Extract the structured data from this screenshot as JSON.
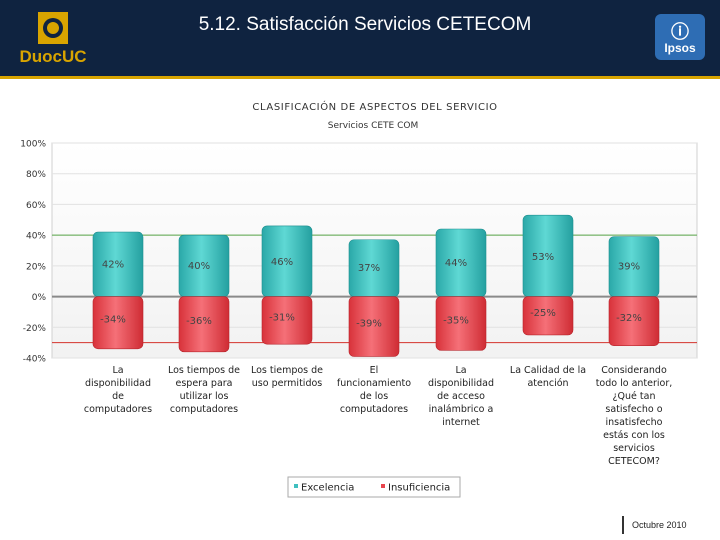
{
  "header": {
    "title": "5.12. Satisfacción Servicios CETECOM",
    "logo_left_text": "DuocUC",
    "logo_right_text": "Ipsos"
  },
  "footer": {
    "date": "Octubre 2010"
  },
  "colors": {
    "excelencia": "#3fbfbf",
    "insuficiencia": "#e8454d",
    "header_bg": "#0f2340"
  },
  "chart_data": {
    "type": "bar",
    "title": "CLASIFICACIÓN DE ASPECTOS DEL SERVICIO",
    "subtitle": "Servicios CETE COM",
    "ylim": [
      -40,
      100
    ],
    "y_ticks": [
      "100%",
      "80%",
      "60%",
      "40%",
      "20%",
      "0%",
      "-20%",
      "-40%"
    ],
    "y_tick_values": [
      100,
      80,
      60,
      40,
      20,
      0,
      -20,
      -40
    ],
    "reference_lines": [
      40,
      -30
    ],
    "categories": [
      [
        "La",
        "disponibilidad",
        "de",
        "computadores"
      ],
      [
        "Los tiempos de",
        "espera para",
        "utilizar los",
        "computadores"
      ],
      [
        "Los tiempos de",
        "uso permitidos"
      ],
      [
        "El",
        "funcionamiento",
        "de los",
        "computadores"
      ],
      [
        "La",
        "disponibilidad",
        "de acceso",
        "inalámbrico a",
        "internet"
      ],
      [
        "La Calidad de la",
        "atención"
      ],
      [
        "Considerando",
        "todo lo anterior,",
        "¿Qué tan",
        "satisfecho o",
        "insatisfecho",
        "estás con los",
        "servicios",
        "CETECOM?"
      ]
    ],
    "series": [
      {
        "name": "Excelencia",
        "values": [
          42,
          40,
          46,
          37,
          44,
          53,
          39
        ],
        "labels": [
          "42%",
          "40%",
          "46%",
          "37%",
          "44%",
          "53%",
          "39%"
        ]
      },
      {
        "name": "Insuficiencia",
        "values": [
          -34,
          -36,
          -31,
          -39,
          -35,
          -25,
          -32
        ],
        "labels": [
          "-34%",
          "-36%",
          "-31%",
          "-39%",
          "-35%",
          "-25%",
          "-32%"
        ]
      }
    ],
    "legend_position": "bottom"
  }
}
